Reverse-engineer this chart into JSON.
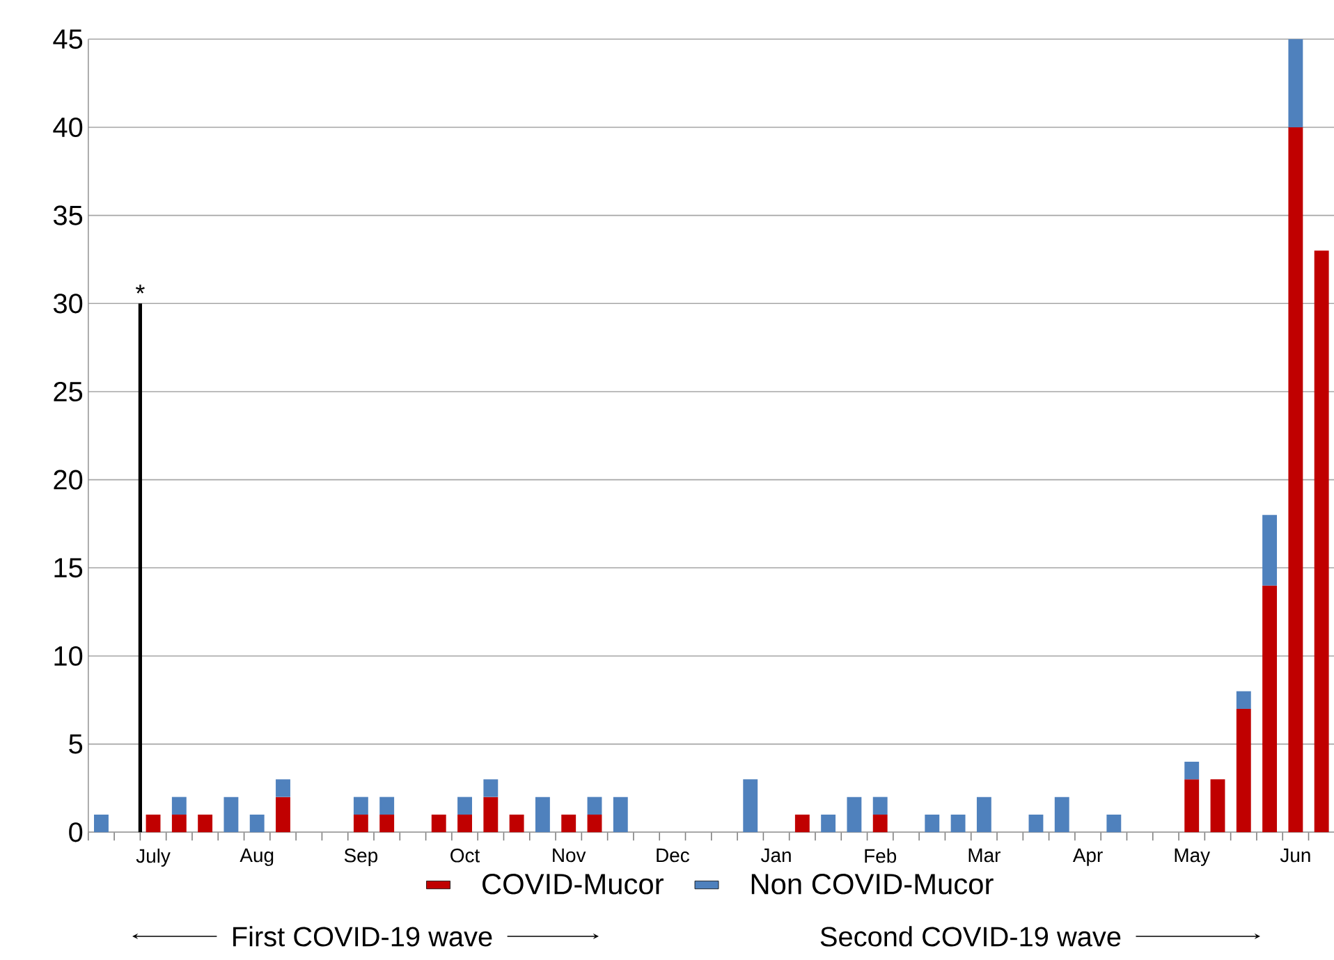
{
  "chart_data": {
    "type": "bar",
    "stacked": true,
    "categories": [
      null,
      null,
      "July",
      null,
      null,
      null,
      "Aug",
      null,
      null,
      null,
      "Sep",
      null,
      null,
      null,
      "Oct",
      null,
      null,
      null,
      "Nov",
      null,
      null,
      null,
      "Dec",
      null,
      null,
      null,
      "Jan",
      null,
      null,
      null,
      "Feb",
      null,
      null,
      null,
      "Mar",
      null,
      null,
      null,
      "Apr",
      null,
      null,
      null,
      "May",
      null,
      null,
      null,
      "Jun",
      null
    ],
    "series": [
      {
        "name": "COVID-Mucor",
        "color": "#c00000",
        "values": [
          null,
          null,
          1,
          1,
          1,
          null,
          null,
          2,
          null,
          null,
          1,
          1,
          null,
          1,
          1,
          2,
          1,
          null,
          1,
          1,
          null,
          null,
          null,
          null,
          null,
          null,
          null,
          1,
          null,
          null,
          1,
          null,
          null,
          null,
          null,
          null,
          null,
          null,
          null,
          null,
          null,
          null,
          3,
          3,
          7,
          14,
          40,
          33
        ]
      },
      {
        "name": "Non COVID-Mucor",
        "color": "#4f81bd",
        "values": [
          1,
          null,
          null,
          1,
          null,
          2,
          1,
          1,
          null,
          null,
          1,
          1,
          null,
          null,
          1,
          1,
          null,
          2,
          null,
          1,
          2,
          null,
          null,
          null,
          null,
          3,
          null,
          null,
          1,
          2,
          1,
          null,
          1,
          1,
          2,
          null,
          1,
          2,
          null,
          1,
          null,
          null,
          1,
          null,
          1,
          4,
          5,
          null
        ]
      },
      {
        "type": "bar",
        "color": "#000000",
        "values": [
          null,
          30,
          null,
          null,
          null,
          null,
          null,
          null,
          null,
          null,
          null,
          null,
          null,
          null,
          null,
          null,
          null,
          null,
          null,
          null,
          null,
          null,
          null,
          null,
          null,
          null,
          null,
          null,
          null,
          null,
          null,
          null,
          null,
          null,
          null,
          null,
          null,
          null,
          null,
          null,
          null,
          null,
          null,
          null,
          null,
          null,
          null,
          null
        ]
      }
    ],
    "ylim": [
      0,
      45
    ],
    "yticks": [
      0,
      5,
      10,
      15,
      20,
      25,
      30,
      35,
      40,
      45
    ],
    "grid": "y",
    "legend": "bottom",
    "annotations": [
      "*",
      "First COVID-19 wave",
      "Second  COVID-19 wave"
    ]
  }
}
